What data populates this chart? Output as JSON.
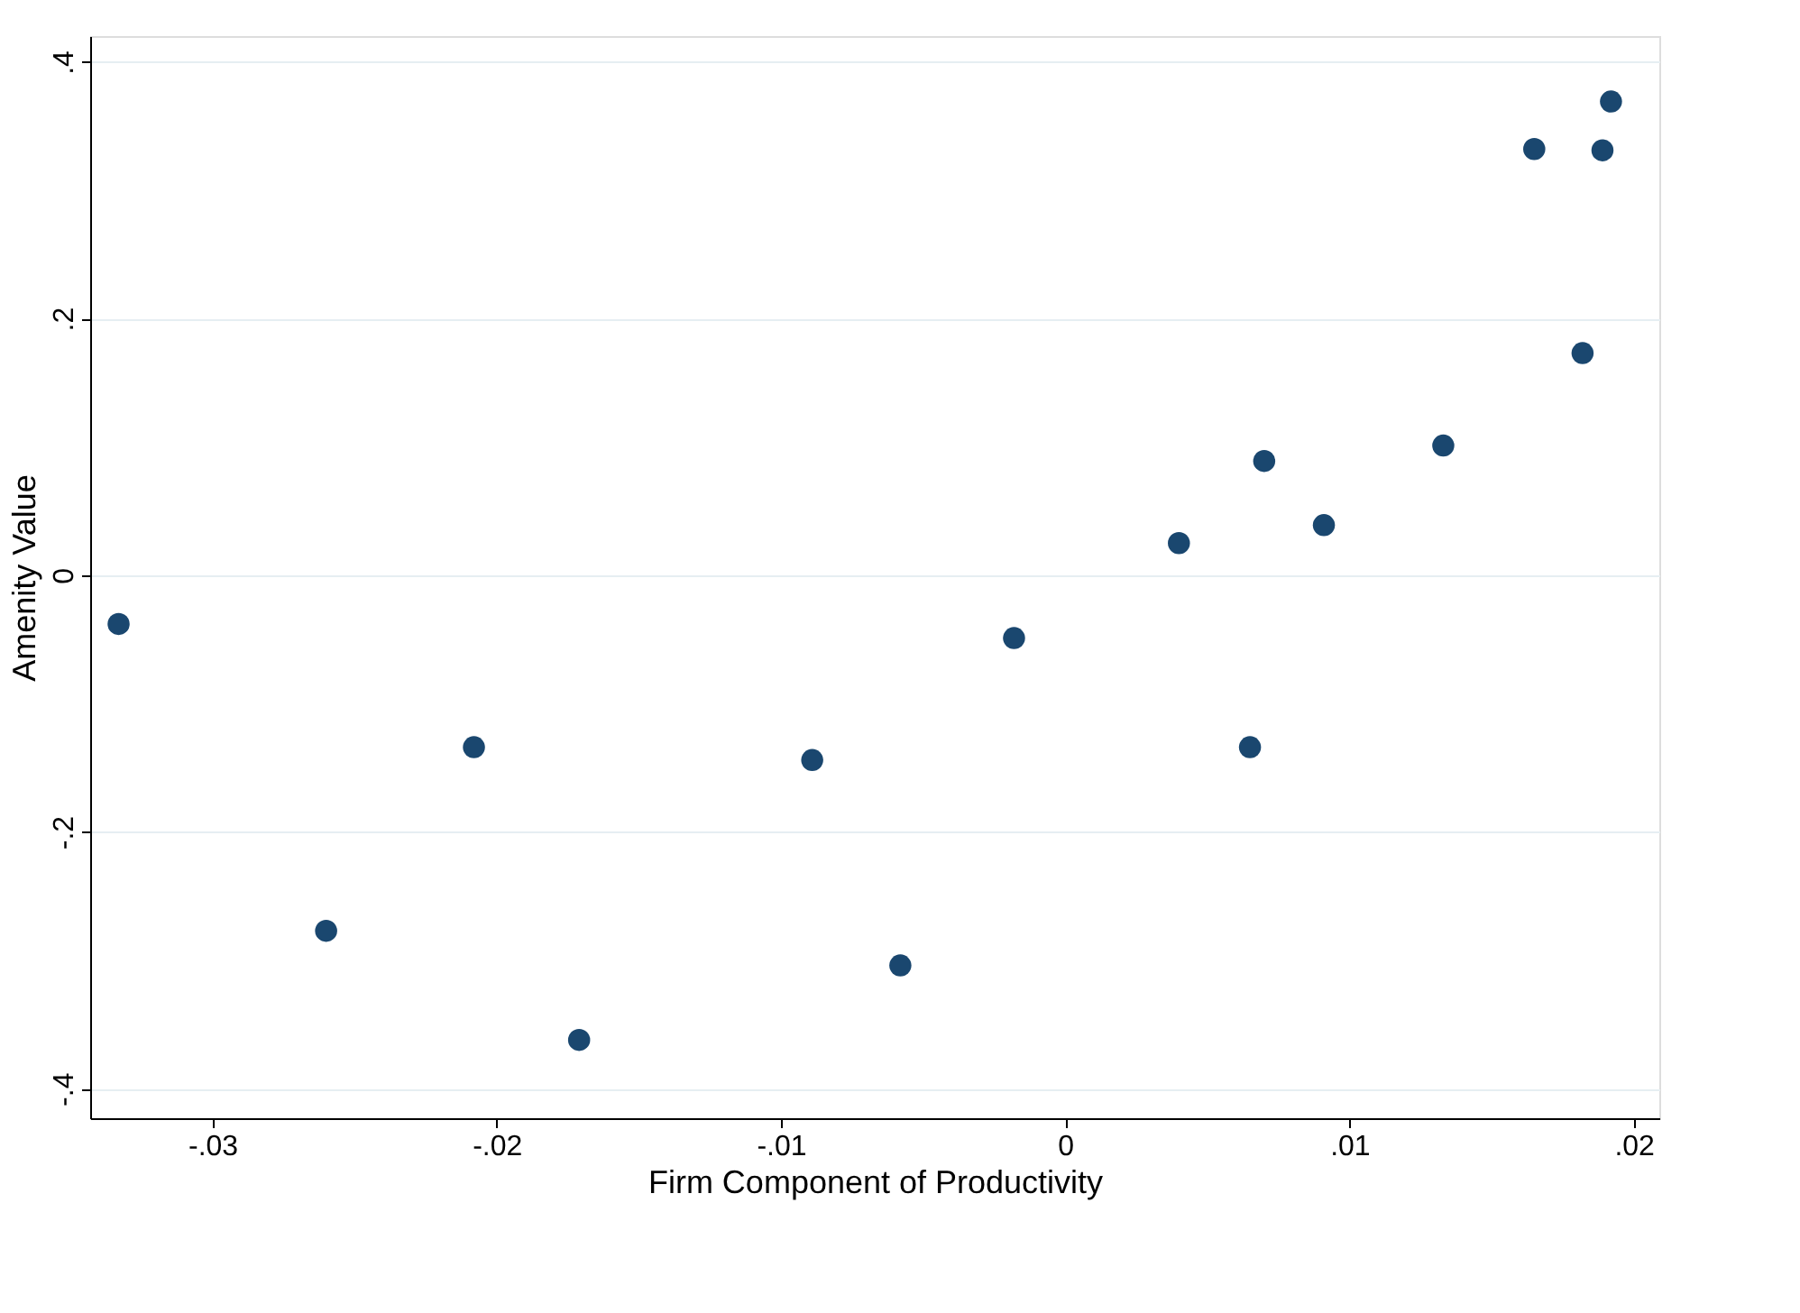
{
  "chart_data": {
    "type": "scatter",
    "xlabel": "Firm Component of Productivity",
    "ylabel": "Amenity Value",
    "x": [
      -0.0333,
      -0.026,
      -0.0208,
      -0.0171,
      -0.0089,
      -0.0058,
      -0.0018,
      0.004,
      0.0065,
      0.007,
      0.0091,
      0.0133,
      0.0165,
      0.0182,
      0.0189,
      0.0192
    ],
    "series": [
      {
        "color": "#1a476f",
        "values": [
          -0.038,
          -0.277,
          -0.134,
          -0.362,
          -0.144,
          -0.304,
          -0.049,
          0.025,
          -0.134,
          0.089,
          0.039,
          0.101,
          0.332,
          0.173,
          0.331,
          0.369
        ]
      }
    ],
    "xlim": [
      -0.0343,
      0.0209
    ],
    "ylim": [
      -0.423,
      0.42
    ],
    "xticks": [
      {
        "value": -0.03,
        "label": "-.03"
      },
      {
        "value": -0.02,
        "label": "-.02"
      },
      {
        "value": -0.01,
        "label": "-.01"
      },
      0,
      {
        "value": 0.01,
        "label": ".01"
      },
      {
        "value": 0.02,
        "label": ".02"
      }
    ],
    "yticks": [
      {
        "value": -0.4,
        "label": "-.4"
      },
      {
        "value": -0.2,
        "label": "-.2"
      },
      0,
      {
        "value": 0.2,
        "label": ".2"
      },
      {
        "value": 0.4,
        "label": ".4"
      }
    ],
    "grid": "y",
    "marker": "circle",
    "legend": false
  }
}
